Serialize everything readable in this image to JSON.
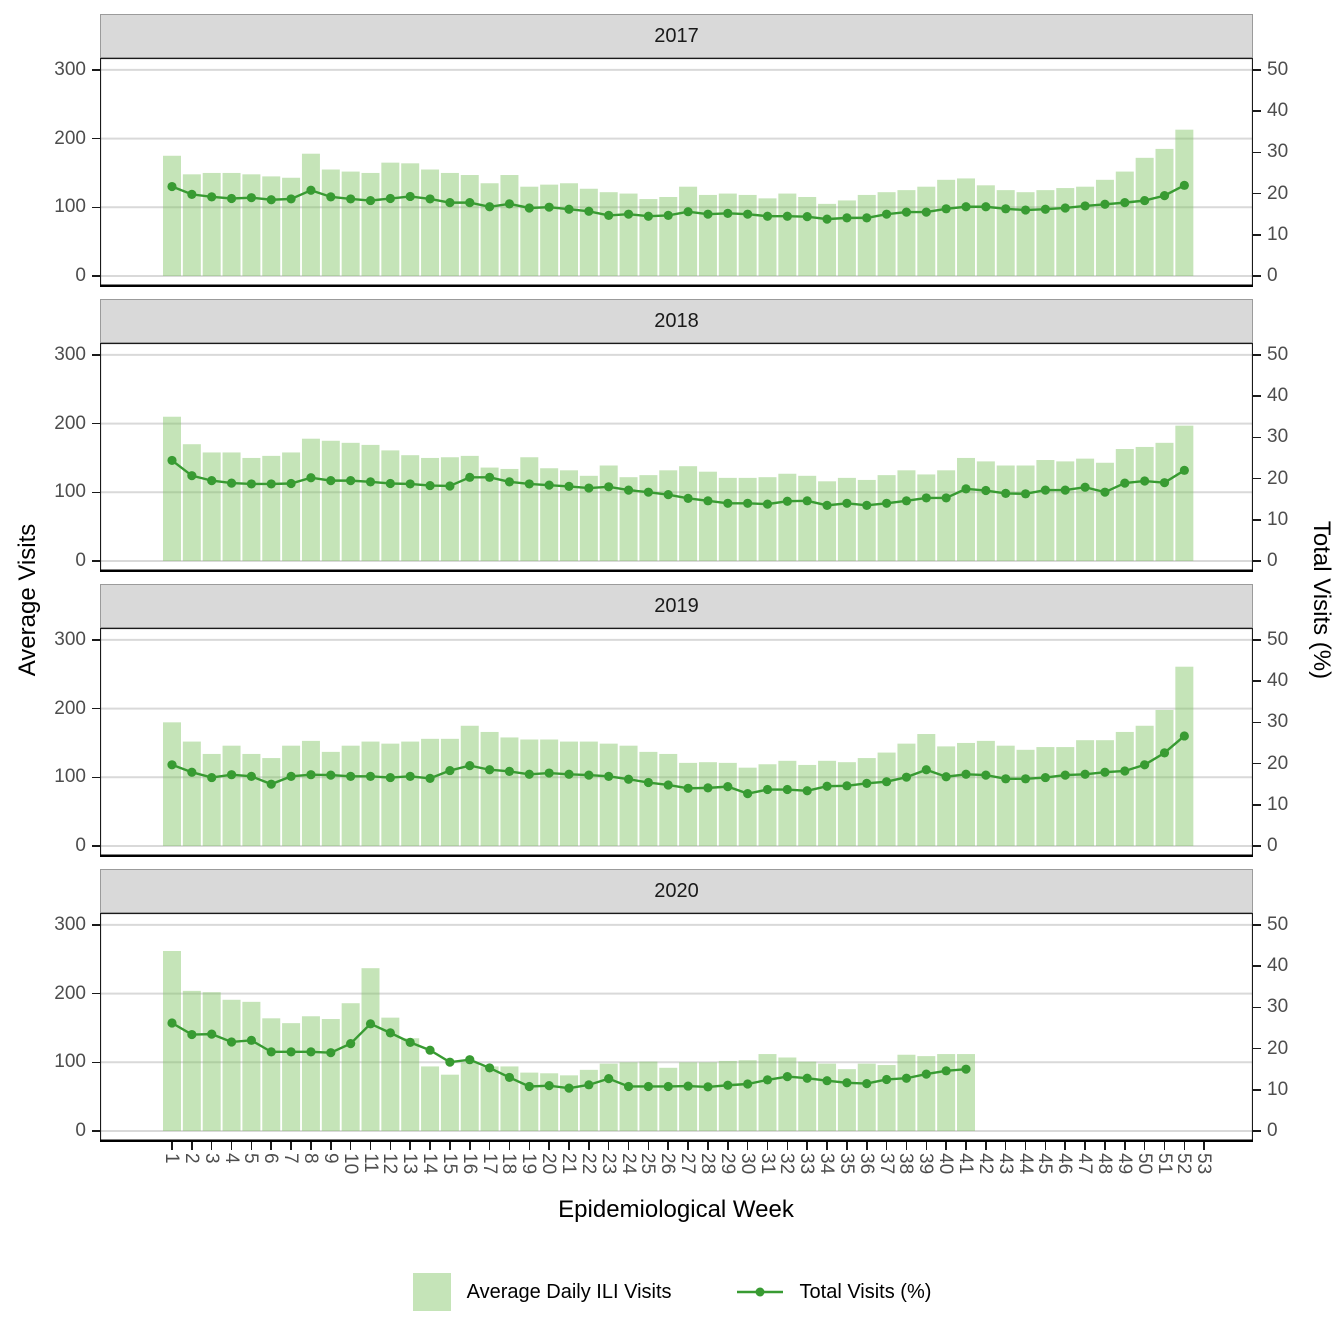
{
  "figure": {
    "kind": "faceted epidemiological surveillance chart, 4 year facets, bars + line overlay"
  },
  "axes": {
    "left": {
      "title": "Average Visits",
      "ticks": [
        "0",
        "100",
        "200",
        "300"
      ],
      "lim": [
        0,
        300
      ]
    },
    "right": {
      "title": "Total Visits (%)",
      "ticks": [
        "0",
        "10",
        "20",
        "30",
        "40",
        "50"
      ],
      "lim": [
        0,
        50
      ]
    },
    "x": {
      "title": "Epidemiological Week",
      "ticks": [
        "1",
        "2",
        "3",
        "4",
        "5",
        "6",
        "7",
        "8",
        "9",
        "10",
        "11",
        "12",
        "13",
        "14",
        "15",
        "16",
        "17",
        "18",
        "19",
        "20",
        "21",
        "22",
        "23",
        "24",
        "25",
        "26",
        "27",
        "28",
        "29",
        "30",
        "31",
        "32",
        "33",
        "34",
        "35",
        "36",
        "37",
        "38",
        "39",
        "40",
        "41",
        "42",
        "43",
        "44",
        "45",
        "46",
        "47",
        "48",
        "49",
        "50",
        "51",
        "52",
        "53"
      ]
    }
  },
  "legend": {
    "bar_label": "Average Daily ILI Visits",
    "line_label": "Total Visits (%)"
  },
  "colors": {
    "bar_fill_solid": "#c5e4b8",
    "bar_fill_alpha": "rgba(127,195,97,0.45)",
    "line": "#389b32",
    "gridline": "#d9d9d9",
    "strip_bg": "#d9d9d9",
    "tick_text": "#4d4d4d",
    "panel_border": "#1a1a1a"
  },
  "chart_data": [
    {
      "facet": "2017",
      "type": "combo-bar-line",
      "x_label": "Epidemiological Week",
      "weeks_range": [
        1,
        52
      ],
      "left_ylim": [
        0,
        300
      ],
      "right_ylim": [
        0,
        50
      ],
      "grid": "horizontal only",
      "series": [
        {
          "name": "Average Daily ILI Visits",
          "type": "bar",
          "axis": "left",
          "values": [
            175,
            148,
            150,
            150,
            148,
            145,
            143,
            178,
            155,
            152,
            150,
            165,
            164,
            155,
            150,
            147,
            135,
            147,
            130,
            133,
            135,
            127,
            122,
            120,
            112,
            115,
            130,
            118,
            120,
            118,
            113,
            120,
            115,
            105,
            110,
            118,
            122,
            125,
            130,
            140,
            142,
            132,
            125,
            122,
            125,
            128,
            130,
            140,
            152,
            172,
            185,
            213
          ]
        },
        {
          "name": "Total Visits (%)",
          "type": "line",
          "axis": "right",
          "values": [
            21.7,
            19.8,
            19.2,
            18.8,
            19.0,
            18.5,
            18.7,
            20.8,
            19.2,
            18.7,
            18.3,
            18.8,
            19.3,
            18.7,
            17.8,
            17.8,
            16.8,
            17.5,
            16.5,
            16.7,
            16.2,
            15.7,
            14.7,
            15.0,
            14.5,
            14.7,
            15.6,
            15.0,
            15.2,
            15.0,
            14.5,
            14.5,
            14.4,
            13.8,
            14.1,
            14.1,
            15.0,
            15.5,
            15.5,
            16.3,
            16.8,
            16.8,
            16.3,
            16.0,
            16.2,
            16.5,
            17.0,
            17.4,
            17.8,
            18.3,
            19.5,
            22.0
          ]
        }
      ]
    },
    {
      "facet": "2018",
      "type": "combo-bar-line",
      "x_label": "Epidemiological Week",
      "weeks_range": [
        1,
        52
      ],
      "left_ylim": [
        0,
        300
      ],
      "right_ylim": [
        0,
        50
      ],
      "grid": "horizontal only",
      "series": [
        {
          "name": "Average Daily ILI Visits",
          "type": "bar",
          "axis": "left",
          "values": [
            210,
            170,
            158,
            158,
            150,
            153,
            158,
            178,
            175,
            172,
            169,
            161,
            154,
            150,
            151,
            153,
            136,
            134,
            151,
            135,
            132,
            124,
            139,
            122,
            125,
            132,
            138,
            130,
            121,
            121,
            122,
            127,
            124,
            116,
            121,
            118,
            125,
            132,
            126,
            132,
            150,
            145,
            139,
            139,
            147,
            145,
            149,
            143,
            163,
            166,
            172,
            197
          ]
        },
        {
          "name": "Total Visits (%)",
          "type": "line",
          "axis": "right",
          "values": [
            24.4,
            20.7,
            19.5,
            18.9,
            18.7,
            18.7,
            18.8,
            20.2,
            19.5,
            19.5,
            19.2,
            18.8,
            18.7,
            18.3,
            18.2,
            20.3,
            20.3,
            19.2,
            18.7,
            18.4,
            18.1,
            17.7,
            18.0,
            17.2,
            16.7,
            16.1,
            15.2,
            14.6,
            14.0,
            14.0,
            13.8,
            14.5,
            14.6,
            13.5,
            14.0,
            13.5,
            14.0,
            14.6,
            15.3,
            15.3,
            17.5,
            17.1,
            16.4,
            16.3,
            17.2,
            17.2,
            17.9,
            16.7,
            18.9,
            19.4,
            19.0,
            22.0
          ]
        }
      ]
    },
    {
      "facet": "2019",
      "type": "combo-bar-line",
      "x_label": "Epidemiological Week",
      "weeks_range": [
        1,
        52
      ],
      "left_ylim": [
        0,
        300
      ],
      "right_ylim": [
        0,
        50
      ],
      "grid": "horizontal only",
      "series": [
        {
          "name": "Average Daily ILI Visits",
          "type": "bar",
          "axis": "left",
          "values": [
            180,
            152,
            134,
            146,
            134,
            128,
            146,
            153,
            137,
            146,
            152,
            149,
            152,
            156,
            156,
            175,
            166,
            158,
            155,
            155,
            152,
            152,
            149,
            146,
            137,
            134,
            121,
            122,
            121,
            114,
            119,
            124,
            118,
            124,
            122,
            128,
            136,
            149,
            163,
            145,
            150,
            153,
            146,
            140,
            144,
            144,
            154,
            154,
            166,
            175,
            198,
            261
          ]
        },
        {
          "name": "Total Visits (%)",
          "type": "line",
          "axis": "right",
          "values": [
            19.7,
            17.9,
            16.6,
            17.3,
            16.9,
            15.0,
            16.9,
            17.3,
            17.2,
            16.9,
            16.9,
            16.6,
            16.9,
            16.4,
            18.3,
            19.5,
            18.5,
            18.1,
            17.4,
            17.7,
            17.4,
            17.2,
            16.9,
            16.2,
            15.4,
            14.8,
            14.0,
            14.1,
            14.4,
            12.7,
            13.7,
            13.7,
            13.4,
            14.5,
            14.6,
            15.2,
            15.6,
            16.7,
            18.5,
            16.8,
            17.4,
            17.2,
            16.3,
            16.3,
            16.6,
            17.2,
            17.4,
            17.9,
            18.2,
            19.7,
            22.6,
            26.7
          ]
        }
      ]
    },
    {
      "facet": "2020",
      "type": "combo-bar-line",
      "x_label": "Epidemiological Week",
      "weeks_range": [
        1,
        41
      ],
      "left_ylim": [
        0,
        300
      ],
      "right_ylim": [
        0,
        50
      ],
      "grid": "horizontal only",
      "series": [
        {
          "name": "Average Daily ILI Visits",
          "type": "bar",
          "axis": "left",
          "values": [
            262,
            204,
            202,
            191,
            188,
            164,
            157,
            167,
            163,
            186,
            237,
            165,
            135,
            94,
            82,
            100,
            94,
            94,
            85,
            84,
            81,
            89,
            98,
            100,
            101,
            92,
            100,
            100,
            102,
            103,
            112,
            107,
            101,
            98,
            90,
            98,
            96,
            111,
            109,
            112,
            112
          ]
        },
        {
          "name": "Total Visits (%)",
          "type": "line",
          "axis": "right",
          "values": [
            26.2,
            23.4,
            23.5,
            21.6,
            22.0,
            19.2,
            19.2,
            19.2,
            19.0,
            21.2,
            26.0,
            23.8,
            21.5,
            19.6,
            16.7,
            17.3,
            15.3,
            13.0,
            10.8,
            11.0,
            10.4,
            11.2,
            12.7,
            10.8,
            10.8,
            10.8,
            10.9,
            10.7,
            11.1,
            11.4,
            12.4,
            13.2,
            12.8,
            12.2,
            11.7,
            11.5,
            12.5,
            12.8,
            13.8,
            14.6,
            15.0
          ]
        }
      ]
    }
  ]
}
